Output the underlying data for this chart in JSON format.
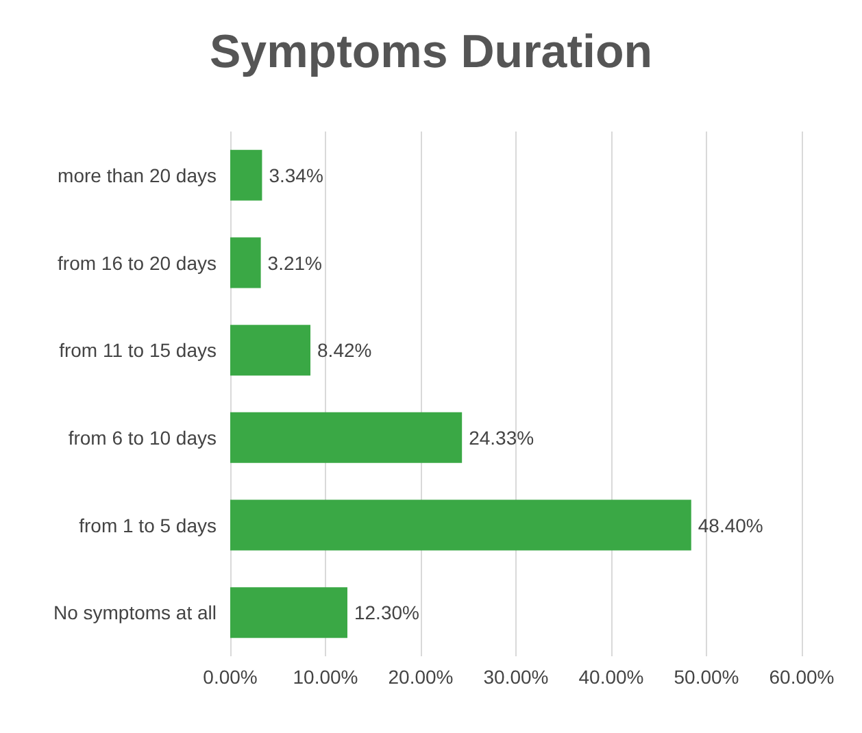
{
  "chart_data": {
    "type": "bar",
    "orientation": "horizontal",
    "title": "Symptoms Duration",
    "categories": [
      "more than 20 days",
      "from 16 to 20 days",
      "from 11 to 15 days",
      "from 6 to 10 days",
      "from 1 to 5 days",
      "No symptoms at all"
    ],
    "values": [
      3.34,
      3.21,
      8.42,
      24.33,
      48.4,
      12.3
    ],
    "value_labels": [
      "3.34%",
      "3.21%",
      "8.42%",
      "24.33%",
      "48.40%",
      "12.30%"
    ],
    "color": "#3aa845",
    "xlim": [
      0,
      60
    ],
    "xticks": [
      {
        "value": 0,
        "label": "0.00%"
      },
      {
        "value": 10,
        "label": "10.00%"
      },
      {
        "value": 20,
        "label": "20.00%"
      },
      {
        "value": 30,
        "label": "30.00%"
      },
      {
        "value": 40,
        "label": "40.00%"
      },
      {
        "value": 50,
        "label": "50.00%"
      },
      {
        "value": 60,
        "label": "60.00%"
      }
    ],
    "grid": "x"
  }
}
